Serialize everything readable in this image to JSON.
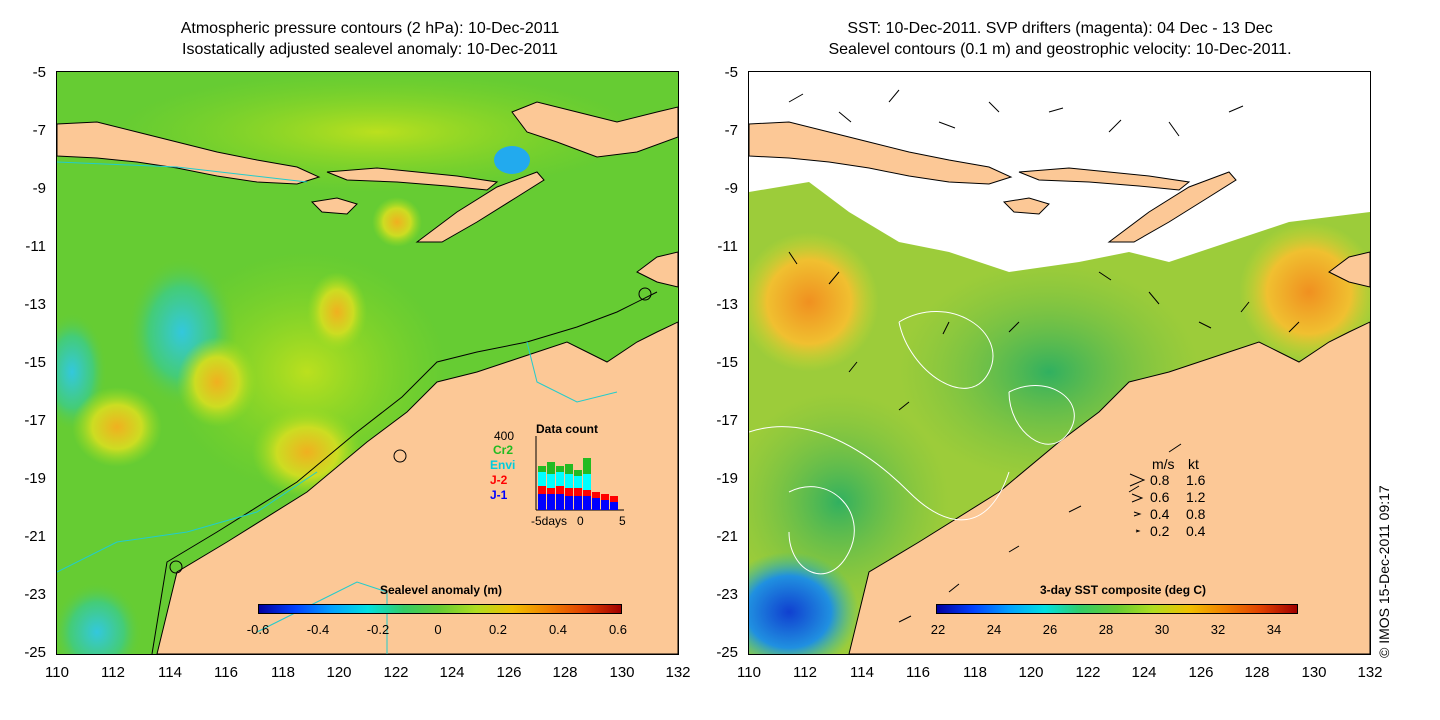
{
  "left_panel": {
    "title_line1": "Atmospheric pressure contours (2 hPa): 10-Dec-2011",
    "title_line2": "Isostatically adjusted sealevel anomaly: 10-Dec-2011",
    "colorbar_title": "Sealevel anomaly (m)",
    "colorbar_ticks": [
      "-0.6",
      "-0.4",
      "-0.2",
      "0",
      "0.2",
      "0.4",
      "0.6"
    ],
    "data_count": {
      "title": "Data count",
      "ymax_label": "400",
      "series_labels": [
        {
          "name": "Cr2",
          "color": "#22bb22"
        },
        {
          "name": "Envi",
          "color": "#00ccdd"
        },
        {
          "name": "J-2",
          "color": "#ff0000"
        },
        {
          "name": "J-1",
          "color": "#0000ff"
        }
      ],
      "x_labels": [
        "-5days",
        "0",
        "5"
      ]
    }
  },
  "right_panel": {
    "title_line1": "SST: 10-Dec-2011. SVP drifters (magenta): 04 Dec - 13 Dec",
    "title_line2": "Sealevel contours (0.1 m) and geostrophic velocity: 10-Dec-2011.",
    "colorbar_title": "3-day SST composite (deg C)",
    "colorbar_ticks": [
      "22",
      "24",
      "26",
      "28",
      "30",
      "32",
      "34"
    ],
    "velocity_legend": {
      "header_ms": "m/s",
      "header_kt": "kt",
      "rows": [
        {
          "ms": "0.8",
          "kt": "1.6"
        },
        {
          "ms": "0.6",
          "kt": "1.2"
        },
        {
          "ms": "0.4",
          "kt": "0.8"
        },
        {
          "ms": "0.2",
          "kt": "0.4"
        }
      ]
    }
  },
  "y_ticks": [
    "-5",
    "-7",
    "-9",
    "-11",
    "-13",
    "-15",
    "-17",
    "-19",
    "-21",
    "-23",
    "-25"
  ],
  "x_ticks": [
    "110",
    "112",
    "114",
    "116",
    "118",
    "120",
    "122",
    "124",
    "126",
    "128",
    "130",
    "132"
  ],
  "copyright": "© IMOS 15-Dec-2011 09:17",
  "colors": {
    "land": "#fcc896",
    "sla_low": "#0000a0",
    "sla_high": "#a00000",
    "sst_low": "#0000a0",
    "sst_high": "#a00000"
  }
}
